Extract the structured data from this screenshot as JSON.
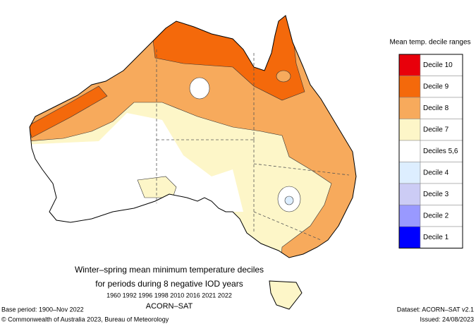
{
  "legend": {
    "title": "Mean temp. decile ranges",
    "items": [
      {
        "label": "Decile 10",
        "color": "#e8000b"
      },
      {
        "label": "Decile 9",
        "color": "#f4690b"
      },
      {
        "label": "Decile 8",
        "color": "#f7aa5c"
      },
      {
        "label": "Decile 7",
        "color": "#fdf6c8"
      },
      {
        "label": "Deciles 5,6",
        "color": "#ffffff"
      },
      {
        "label": "Decile 4",
        "color": "#ddeeff"
      },
      {
        "label": "Decile 3",
        "color": "#ccccf5"
      },
      {
        "label": "Decile 2",
        "color": "#9999ff"
      },
      {
        "label": "Decile 1",
        "color": "#0000ff"
      }
    ]
  },
  "title": {
    "line1": "Winter–spring mean minimum temperature deciles",
    "line2": "for periods during 8 negative IOD years",
    "years": "1960 1992 1996 1998 2010 2016 2021 2022",
    "dataset_name": "ACORN–SAT"
  },
  "footer": {
    "base_period": "Base period: 1900–Nov 2022",
    "copyright": "© Commonwealth of Australia 2023, Bureau of Meteorology",
    "dataset": "Dataset: ACORN–SAT v2.1",
    "issued": "Issued: 24/08/2023"
  }
}
